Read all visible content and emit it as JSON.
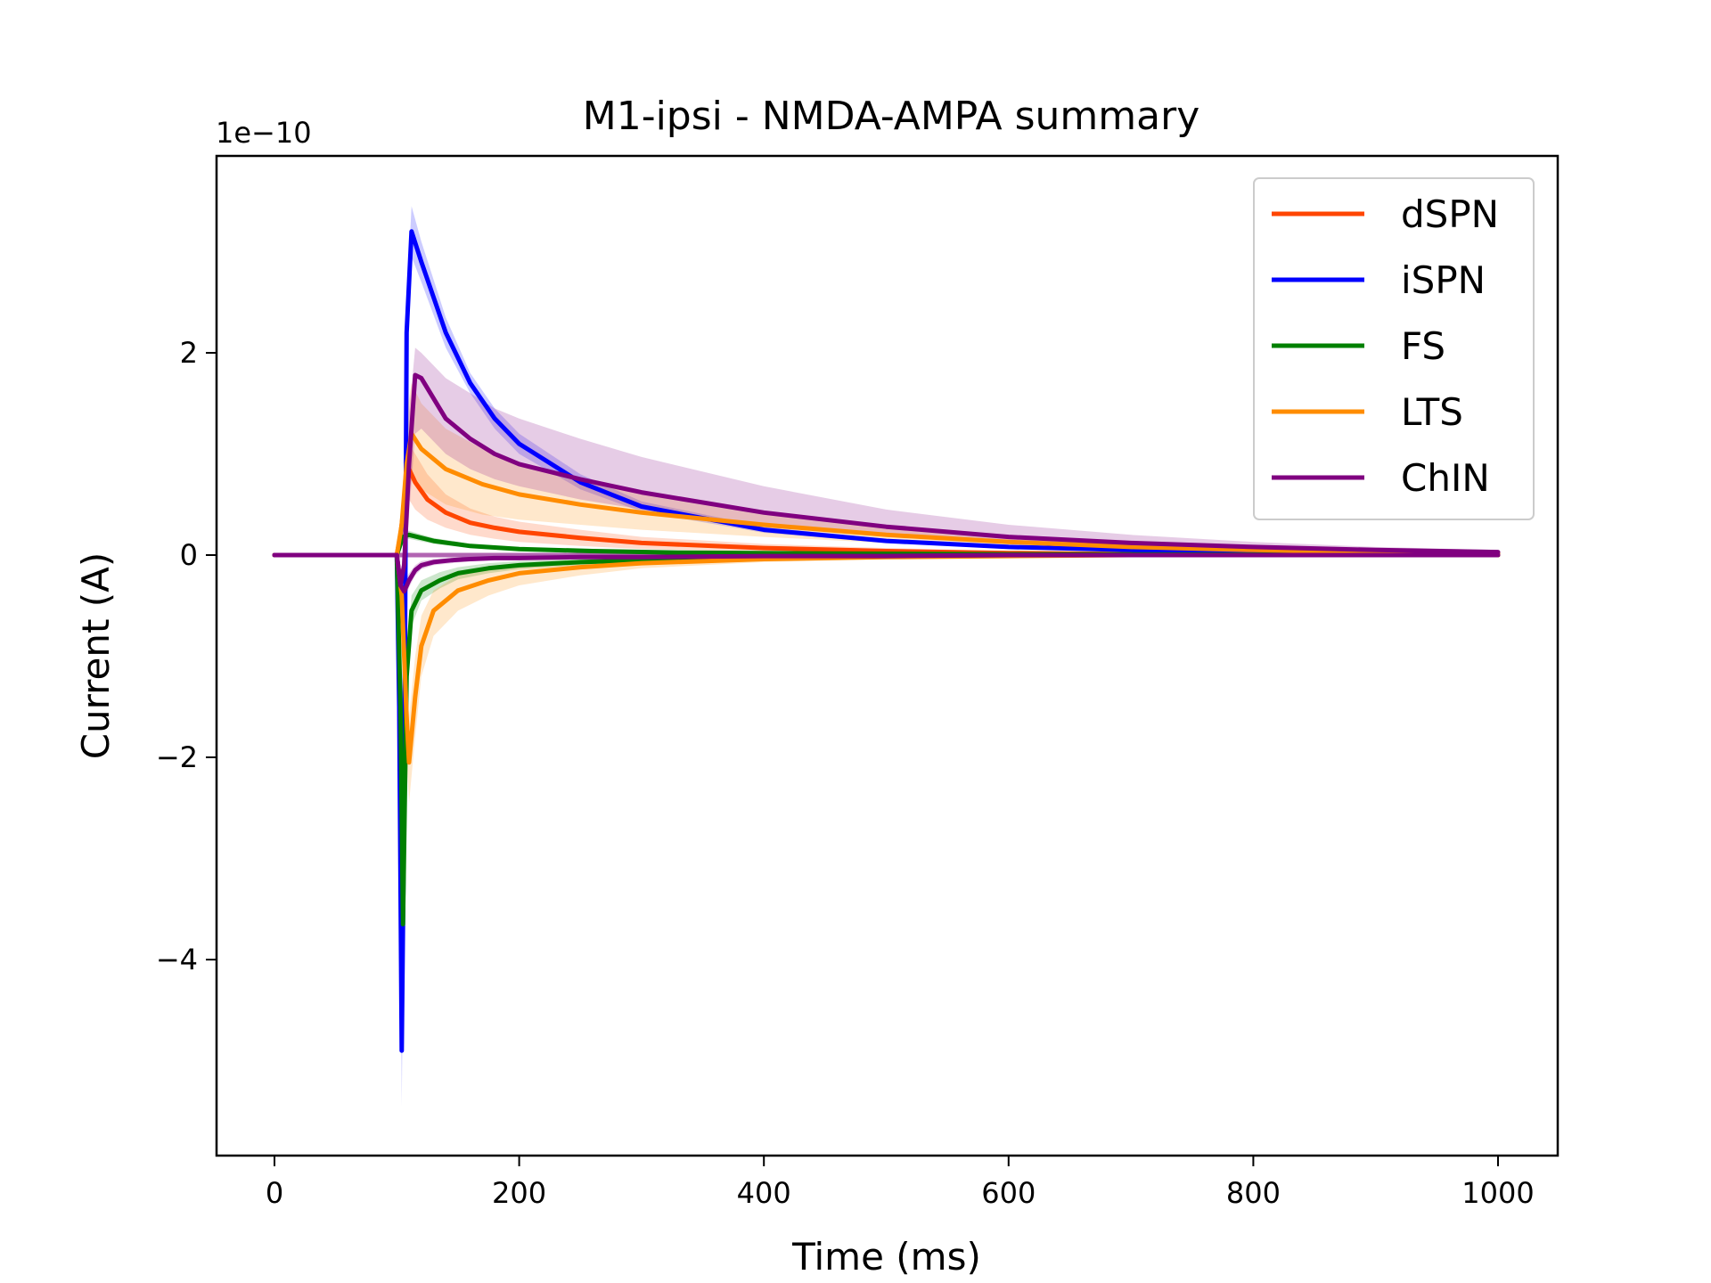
{
  "chart_data": {
    "type": "line",
    "title": "M1-ipsi - NMDA-AMPA summary",
    "xlabel": "Time (ms)",
    "ylabel": "Current (A)",
    "y_offset_label": "1e−10",
    "y_scale": 1e-10,
    "xlim": [
      -50,
      1050
    ],
    "ylim": [
      -5.85,
      3.9
    ],
    "xticks": [
      0,
      200,
      400,
      600,
      800,
      1000
    ],
    "xtick_labels": [
      "0",
      "200",
      "400",
      "600",
      "800",
      "1000"
    ],
    "yticks": [
      2,
      0,
      -2,
      -4
    ],
    "ytick_labels": [
      "2",
      "0",
      "−2",
      "−4"
    ],
    "grid": false,
    "legend_position": "top-right",
    "series": [
      {
        "name": "dSPN",
        "color": "#ff4500",
        "x": [
          0,
          100,
          103,
          106,
          110,
          115,
          125,
          140,
          160,
          180,
          200,
          250,
          300,
          400,
          500,
          600,
          700,
          800,
          900,
          1000
        ],
        "y": [
          0,
          0,
          0.2,
          0.5,
          0.85,
          0.72,
          0.55,
          0.42,
          0.32,
          0.27,
          0.23,
          0.17,
          0.12,
          0.07,
          0.04,
          0.02,
          0.01,
          0.01,
          0.0,
          0.0
        ],
        "lower": [
          0,
          0,
          0.1,
          0.3,
          0.55,
          0.45,
          0.35,
          0.27,
          0.2,
          0.16,
          0.13,
          0.09,
          0.06,
          0.03,
          0.02,
          0.01,
          0.0,
          0.0,
          0.0,
          0.0
        ],
        "upper": [
          0,
          0,
          0.3,
          0.7,
          1.1,
          1.0,
          0.8,
          0.6,
          0.46,
          0.38,
          0.33,
          0.25,
          0.18,
          0.11,
          0.07,
          0.04,
          0.02,
          0.01,
          0.0,
          0.0
        ]
      },
      {
        "name": "iSPN",
        "color": "#0000ff",
        "x": [
          0,
          100,
          102,
          104,
          106,
          108,
          112,
          120,
          140,
          160,
          180,
          200,
          250,
          300,
          400,
          500,
          600,
          700,
          800,
          900,
          1000
        ],
        "y": [
          0,
          0,
          -1.5,
          -4.9,
          -2.5,
          2.2,
          3.2,
          2.9,
          2.2,
          1.7,
          1.35,
          1.1,
          0.72,
          0.48,
          0.25,
          0.14,
          0.08,
          0.05,
          0.03,
          0.02,
          0.01
        ],
        "lower": [
          0,
          0,
          -1.8,
          -5.45,
          -2.9,
          1.9,
          2.95,
          2.7,
          2.05,
          1.6,
          1.25,
          1.0,
          0.65,
          0.43,
          0.22,
          0.12,
          0.07,
          0.04,
          0.02,
          0.01,
          0.0
        ],
        "upper": [
          0,
          0,
          -1.2,
          -4.4,
          -2.1,
          2.5,
          3.45,
          3.1,
          2.35,
          1.8,
          1.45,
          1.2,
          0.8,
          0.53,
          0.28,
          0.16,
          0.1,
          0.06,
          0.04,
          0.03,
          0.02
        ]
      },
      {
        "name": "FS",
        "color": "#008000",
        "x": [
          0,
          100,
          103,
          105,
          108,
          112,
          120,
          135,
          150,
          175,
          200,
          250,
          300,
          400,
          500,
          600,
          800,
          1000
        ],
        "y": [
          0,
          0,
          -1.5,
          -3.65,
          -1.2,
          -0.55,
          -0.35,
          -0.25,
          -0.18,
          -0.13,
          -0.1,
          -0.07,
          -0.05,
          -0.02,
          -0.01,
          0.0,
          0.0,
          0.0
        ],
        "lower": [
          0,
          0,
          -1.7,
          -3.9,
          -1.4,
          -0.7,
          -0.45,
          -0.33,
          -0.24,
          -0.18,
          -0.14,
          -0.1,
          -0.07,
          -0.04,
          -0.02,
          -0.01,
          0.0,
          0.0
        ],
        "upper": [
          0,
          0,
          -1.3,
          -3.4,
          -1.0,
          -0.4,
          -0.25,
          -0.17,
          -0.12,
          -0.08,
          -0.06,
          -0.04,
          -0.03,
          -0.01,
          0.0,
          0.0,
          0.0,
          0.0
        ]
      },
      {
        "name": "FS (positive)",
        "color": "#008000",
        "x": [
          0,
          100,
          105,
          110,
          130,
          160,
          200,
          260,
          330,
          450,
          600,
          800,
          1000
        ],
        "y": [
          0,
          0,
          0.18,
          0.2,
          0.14,
          0.09,
          0.06,
          0.04,
          0.025,
          0.015,
          0.008,
          0.004,
          0.002
        ],
        "lower": [
          0,
          0,
          0.14,
          0.16,
          0.11,
          0.07,
          0.045,
          0.03,
          0.018,
          0.01,
          0.005,
          0.002,
          0.0
        ],
        "upper": [
          0,
          0,
          0.22,
          0.24,
          0.17,
          0.11,
          0.075,
          0.05,
          0.032,
          0.02,
          0.011,
          0.006,
          0.004
        ]
      },
      {
        "name": "LTS",
        "color": "#ff8c00",
        "x": [
          0,
          100,
          104,
          108,
          110,
          115,
          120,
          130,
          150,
          175,
          200,
          250,
          300,
          400,
          500,
          600,
          700,
          800,
          900,
          1000
        ],
        "y": [
          0,
          0,
          -0.4,
          -1.6,
          -2.05,
          -1.4,
          -0.9,
          -0.55,
          -0.35,
          -0.25,
          -0.18,
          -0.12,
          -0.08,
          -0.04,
          -0.02,
          -0.01,
          0.0,
          0.0,
          0.0,
          0.0
        ],
        "lower": [
          0,
          0,
          -0.6,
          -2.0,
          -2.45,
          -1.8,
          -1.2,
          -0.8,
          -0.55,
          -0.4,
          -0.3,
          -0.2,
          -0.13,
          -0.07,
          -0.04,
          -0.02,
          -0.01,
          0.0,
          0.0,
          0.0
        ],
        "upper": [
          0,
          0,
          -0.2,
          -1.2,
          -1.6,
          -1.0,
          -0.6,
          -0.35,
          -0.2,
          -0.13,
          -0.09,
          -0.05,
          -0.03,
          -0.01,
          0.0,
          0.0,
          0.0,
          0.0,
          0.0,
          0.0
        ]
      },
      {
        "name": "LTS (positive)",
        "color": "#ff8c00",
        "x": [
          0,
          100,
          104,
          108,
          112,
          120,
          140,
          170,
          200,
          250,
          300,
          400,
          500,
          600,
          700,
          800,
          900,
          1000
        ],
        "y": [
          0,
          0,
          0.3,
          0.9,
          1.2,
          1.05,
          0.85,
          0.7,
          0.6,
          0.5,
          0.42,
          0.3,
          0.2,
          0.13,
          0.08,
          0.05,
          0.03,
          0.02
        ],
        "lower": [
          0,
          0,
          0.15,
          0.5,
          0.75,
          0.65,
          0.5,
          0.4,
          0.35,
          0.3,
          0.25,
          0.18,
          0.12,
          0.08,
          0.05,
          0.03,
          0.02,
          0.01
        ],
        "upper": [
          0,
          0,
          0.45,
          1.4,
          1.7,
          1.5,
          1.25,
          1.05,
          0.9,
          0.75,
          0.62,
          0.44,
          0.3,
          0.2,
          0.12,
          0.08,
          0.05,
          0.03
        ]
      },
      {
        "name": "ChIN",
        "color": "#800080",
        "x": [
          0,
          100,
          103,
          106,
          110,
          115,
          120,
          140,
          160,
          180,
          200,
          250,
          300,
          400,
          500,
          600,
          700,
          800,
          900,
          1000
        ],
        "y": [
          0,
          0,
          -0.3,
          -0.1,
          0.9,
          1.78,
          1.75,
          1.35,
          1.15,
          1.0,
          0.9,
          0.75,
          0.62,
          0.42,
          0.28,
          0.18,
          0.12,
          0.08,
          0.05,
          0.03
        ],
        "lower": [
          0,
          0,
          -0.4,
          -0.3,
          0.4,
          1.2,
          1.25,
          1.0,
          0.85,
          0.75,
          0.68,
          0.55,
          0.45,
          0.3,
          0.2,
          0.12,
          0.08,
          0.05,
          0.03,
          0.02
        ],
        "upper": [
          0,
          0,
          -0.2,
          0.1,
          1.4,
          2.05,
          2.0,
          1.75,
          1.6,
          1.45,
          1.35,
          1.15,
          0.97,
          0.68,
          0.45,
          0.3,
          0.2,
          0.13,
          0.08,
          0.05
        ]
      },
      {
        "name": "ChIN (negative)",
        "color": "#800080",
        "x": [
          0,
          100,
          103,
          106,
          110,
          115,
          120,
          130,
          145,
          160,
          180,
          200,
          250,
          300,
          400,
          500,
          600,
          800,
          1000
        ],
        "y": [
          0,
          0,
          -0.3,
          -0.36,
          -0.25,
          -0.15,
          -0.1,
          -0.07,
          -0.05,
          -0.04,
          -0.03,
          -0.03,
          -0.02,
          -0.02,
          -0.01,
          -0.01,
          0.0,
          0.0,
          0.0
        ],
        "lower": [
          0,
          0,
          -0.4,
          -0.45,
          -0.32,
          -0.2,
          -0.14,
          -0.1,
          -0.08,
          -0.06,
          -0.05,
          -0.04,
          -0.03,
          -0.03,
          -0.02,
          -0.01,
          -0.01,
          0.0,
          0.0
        ],
        "upper": [
          0,
          0,
          -0.2,
          -0.27,
          -0.18,
          -0.1,
          -0.06,
          -0.04,
          -0.03,
          -0.02,
          -0.02,
          -0.02,
          -0.01,
          -0.01,
          0.0,
          0.0,
          0.0,
          0.0,
          0.0
        ]
      }
    ],
    "legend": [
      "dSPN",
      "iSPN",
      "FS",
      "LTS",
      "ChIN"
    ],
    "legend_colors": [
      "#ff4500",
      "#0000ff",
      "#008000",
      "#ff8c00",
      "#800080"
    ]
  }
}
